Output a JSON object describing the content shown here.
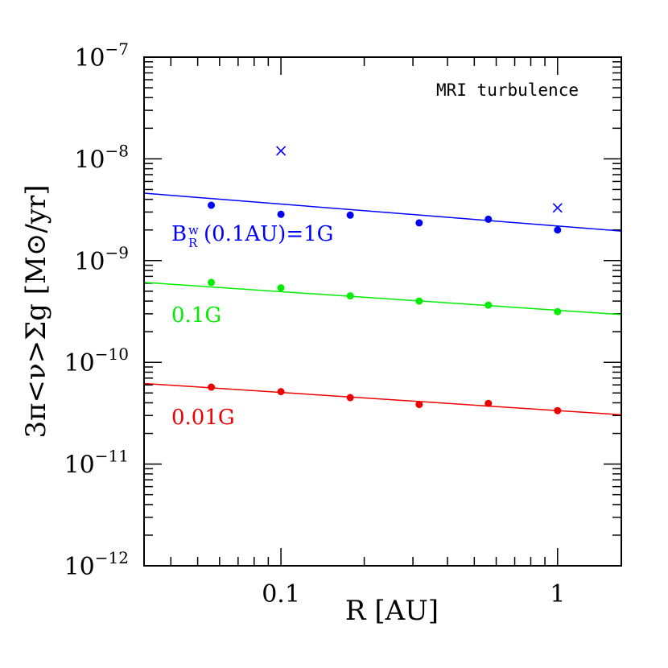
{
  "chart_data": {
    "type": "scatter",
    "xscale": "log",
    "yscale": "log",
    "xlim": [
      0.032,
      1.7
    ],
    "ylim": [
      1e-12,
      1e-07
    ],
    "xlabel": "R [AU]",
    "ylabel": "3π<ν>Σg [M⊙/yr]",
    "x_tick_labels": [
      {
        "value": 0.1,
        "label": "0.1"
      },
      {
        "value": 1,
        "label": "1"
      }
    ],
    "y_tick_labels": [
      {
        "value": 1e-12,
        "base": "10",
        "exp": "−12"
      },
      {
        "value": 1e-11,
        "base": "10",
        "exp": "−11"
      },
      {
        "value": 1e-10,
        "base": "10",
        "exp": "−10"
      },
      {
        "value": 1e-09,
        "base": "10",
        "exp": "−9"
      },
      {
        "value": 1e-08,
        "base": "10",
        "exp": "−8"
      },
      {
        "value": 1e-07,
        "base": "10",
        "exp": "−7"
      }
    ],
    "annotation": "MRI turbulence",
    "series": [
      {
        "label_main": "B",
        "label_sup": "w",
        "label_sub": "R",
        "label_rest": "(0.1AU)=1G",
        "color": "#0000ff",
        "points": [
          {
            "x": 0.056,
            "y": 3.5e-09
          },
          {
            "x": 0.1,
            "y": 2.85e-09
          },
          {
            "x": 0.178,
            "y": 2.8e-09
          },
          {
            "x": 0.316,
            "y": 2.35e-09
          },
          {
            "x": 0.562,
            "y": 2.55e-09
          },
          {
            "x": 1.0,
            "y": 2e-09
          }
        ],
        "cross_points": [
          {
            "x": 0.1,
            "y": 1.2e-08
          },
          {
            "x": 1.0,
            "y": 3.3e-09
          }
        ],
        "fit_line": [
          {
            "x": 0.032,
            "y": 4.6e-09
          },
          {
            "x": 1.7,
            "y": 1.95e-09
          }
        ]
      },
      {
        "label": "0.1G",
        "color": "#00ee00",
        "points": [
          {
            "x": 0.056,
            "y": 6.1e-10
          },
          {
            "x": 0.1,
            "y": 5.4e-10
          },
          {
            "x": 0.178,
            "y": 4.5e-10
          },
          {
            "x": 0.316,
            "y": 4e-10
          },
          {
            "x": 0.562,
            "y": 3.65e-10
          },
          {
            "x": 1.0,
            "y": 3.15e-10
          }
        ],
        "fit_line": [
          {
            "x": 0.032,
            "y": 6.1e-10
          },
          {
            "x": 1.7,
            "y": 2.95e-10
          }
        ]
      },
      {
        "label": "0.01G",
        "color": "#ee0000",
        "points": [
          {
            "x": 0.056,
            "y": 5.7e-11
          },
          {
            "x": 0.1,
            "y": 5.15e-11
          },
          {
            "x": 0.178,
            "y": 4.5e-11
          },
          {
            "x": 0.316,
            "y": 3.85e-11
          },
          {
            "x": 0.562,
            "y": 3.95e-11
          },
          {
            "x": 1.0,
            "y": 3.35e-11
          }
        ],
        "fit_line": [
          {
            "x": 0.032,
            "y": 6.2e-11
          },
          {
            "x": 1.7,
            "y": 3.05e-11
          }
        ]
      }
    ]
  }
}
